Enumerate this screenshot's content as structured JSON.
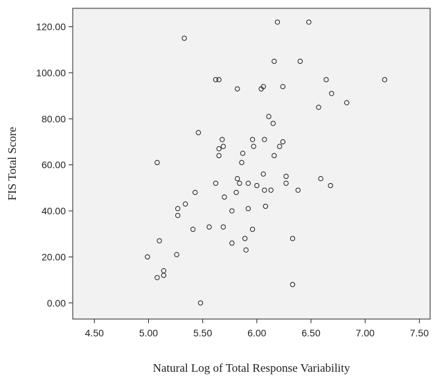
{
  "chart_data": {
    "type": "scatter",
    "title": "",
    "xlabel": "Natural Log of Total Response Variability",
    "ylabel": "FIS Total Score",
    "xlim": [
      4.3,
      7.6
    ],
    "ylim": [
      -7,
      128
    ],
    "x_ticks": [
      "4.50",
      "5.00",
      "5.50",
      "6.00",
      "6.50",
      "7.00",
      "7.50"
    ],
    "y_ticks": [
      "0.00",
      "20.00",
      "40.00",
      "60.00",
      "80.00",
      "100.00",
      "120.00"
    ],
    "grid": false,
    "legend": "none",
    "points": [
      {
        "x": 6.19,
        "y": 122
      },
      {
        "x": 6.48,
        "y": 122
      },
      {
        "x": 5.33,
        "y": 115
      },
      {
        "x": 6.16,
        "y": 105
      },
      {
        "x": 6.4,
        "y": 105
      },
      {
        "x": 5.62,
        "y": 97
      },
      {
        "x": 5.65,
        "y": 97
      },
      {
        "x": 6.64,
        "y": 97
      },
      {
        "x": 7.18,
        "y": 97
      },
      {
        "x": 5.82,
        "y": 93
      },
      {
        "x": 6.04,
        "y": 93
      },
      {
        "x": 6.06,
        "y": 94
      },
      {
        "x": 6.24,
        "y": 94
      },
      {
        "x": 6.69,
        "y": 91
      },
      {
        "x": 6.57,
        "y": 85
      },
      {
        "x": 6.83,
        "y": 87
      },
      {
        "x": 6.11,
        "y": 81
      },
      {
        "x": 6.15,
        "y": 78
      },
      {
        "x": 5.46,
        "y": 74
      },
      {
        "x": 5.68,
        "y": 71
      },
      {
        "x": 5.96,
        "y": 71
      },
      {
        "x": 6.07,
        "y": 71
      },
      {
        "x": 6.24,
        "y": 70
      },
      {
        "x": 5.65,
        "y": 67
      },
      {
        "x": 5.69,
        "y": 68
      },
      {
        "x": 5.97,
        "y": 68
      },
      {
        "x": 6.21,
        "y": 68
      },
      {
        "x": 5.65,
        "y": 64
      },
      {
        "x": 5.87,
        "y": 65
      },
      {
        "x": 6.16,
        "y": 64
      },
      {
        "x": 5.08,
        "y": 61
      },
      {
        "x": 5.86,
        "y": 61
      },
      {
        "x": 6.06,
        "y": 56
      },
      {
        "x": 6.27,
        "y": 55
      },
      {
        "x": 6.59,
        "y": 54
      },
      {
        "x": 5.62,
        "y": 52
      },
      {
        "x": 5.82,
        "y": 54
      },
      {
        "x": 5.84,
        "y": 52
      },
      {
        "x": 5.92,
        "y": 52
      },
      {
        "x": 6.0,
        "y": 51
      },
      {
        "x": 6.27,
        "y": 52
      },
      {
        "x": 6.68,
        "y": 51
      },
      {
        "x": 6.07,
        "y": 49
      },
      {
        "x": 6.13,
        "y": 49
      },
      {
        "x": 6.38,
        "y": 49
      },
      {
        "x": 5.43,
        "y": 48
      },
      {
        "x": 5.81,
        "y": 48
      },
      {
        "x": 5.7,
        "y": 46
      },
      {
        "x": 5.34,
        "y": 43
      },
      {
        "x": 6.08,
        "y": 42
      },
      {
        "x": 5.27,
        "y": 41
      },
      {
        "x": 5.77,
        "y": 40
      },
      {
        "x": 5.92,
        "y": 41
      },
      {
        "x": 5.27,
        "y": 38
      },
      {
        "x": 5.41,
        "y": 32
      },
      {
        "x": 5.56,
        "y": 33
      },
      {
        "x": 5.69,
        "y": 33
      },
      {
        "x": 5.96,
        "y": 32
      },
      {
        "x": 5.89,
        "y": 28
      },
      {
        "x": 6.33,
        "y": 28
      },
      {
        "x": 5.1,
        "y": 27
      },
      {
        "x": 5.77,
        "y": 26
      },
      {
        "x": 5.9,
        "y": 23
      },
      {
        "x": 5.26,
        "y": 21
      },
      {
        "x": 4.99,
        "y": 20
      },
      {
        "x": 5.14,
        "y": 14
      },
      {
        "x": 5.14,
        "y": 12
      },
      {
        "x": 5.08,
        "y": 11
      },
      {
        "x": 6.33,
        "y": 8
      },
      {
        "x": 5.48,
        "y": 0
      }
    ]
  }
}
